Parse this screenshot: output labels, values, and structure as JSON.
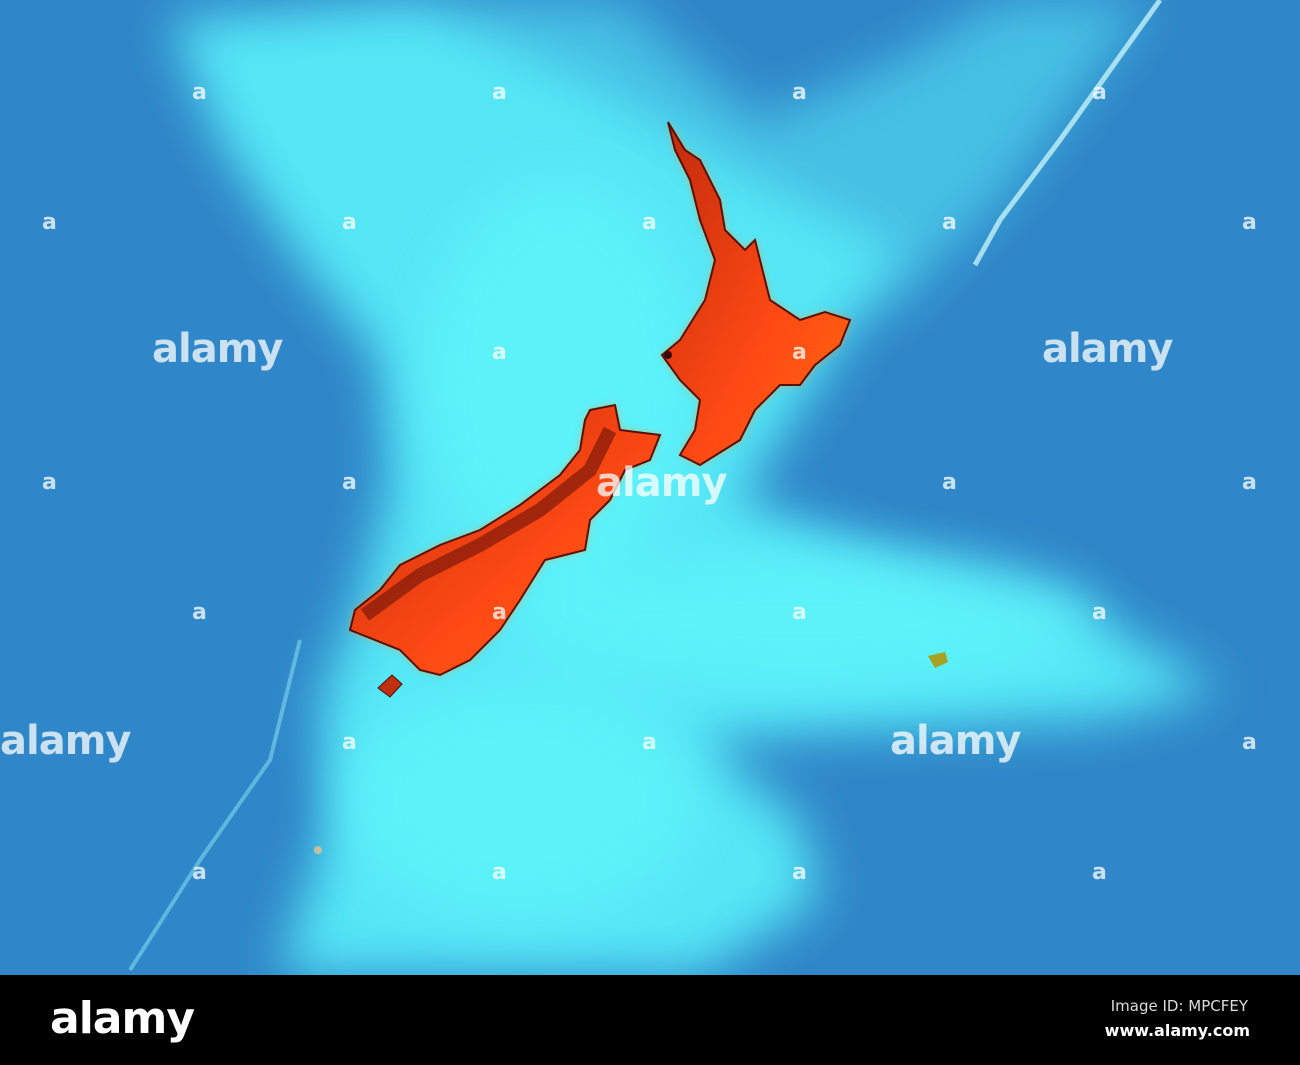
{
  "colors": {
    "deep_ocean": "#2f86c8",
    "shelf": "#52ecf7",
    "land": "#ff4a14",
    "land_dark": "#6a1208",
    "footer": "#000000"
  },
  "watermark": {
    "text": "alamy",
    "mark": "a"
  },
  "footer": {
    "logo": "alamy",
    "image_id": "Image ID: MPCFEY",
    "url": "www.alamy.com"
  }
}
